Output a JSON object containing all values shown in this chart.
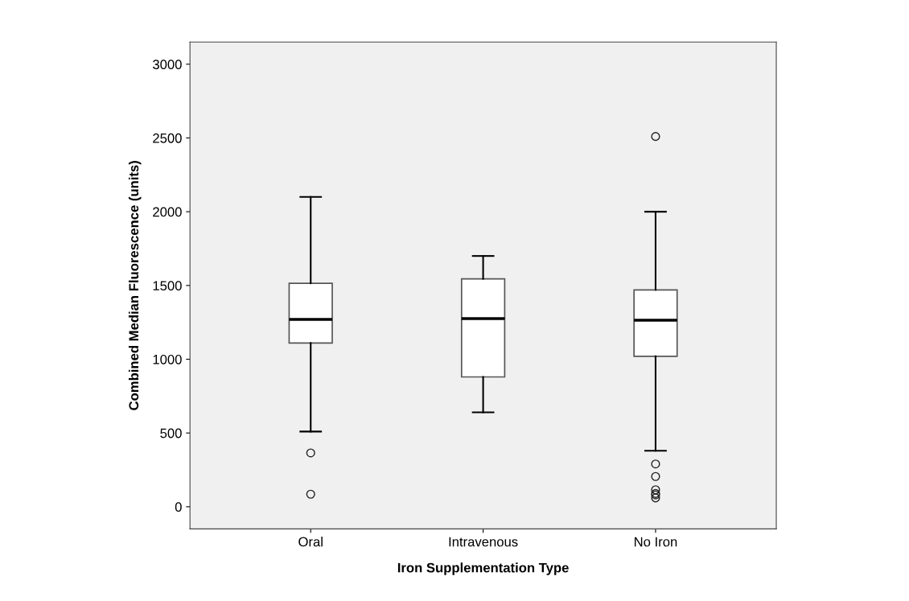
{
  "chart_data": {
    "type": "box",
    "xlabel": "Iron Supplementation Type",
    "ylabel": "Combined Median Fluorescence (units)",
    "categories": [
      "Oral",
      "Intravenous",
      "No Iron"
    ],
    "boxes": [
      {
        "low": 510,
        "q1": 1110,
        "median": 1270,
        "q3": 1515,
        "high": 2100,
        "outliers": [
          365,
          85
        ]
      },
      {
        "low": 640,
        "q1": 880,
        "median": 1275,
        "q3": 1545,
        "high": 1700
      },
      {
        "low": 380,
        "q1": 1020,
        "median": 1265,
        "q3": 1470,
        "high": 2000,
        "outliers": [
          2510,
          290,
          205,
          115,
          90,
          80,
          60
        ]
      }
    ],
    "ylim": [
      -150,
      3150
    ],
    "yticks": [
      0,
      500,
      1000,
      1500,
      2000,
      2500,
      3000
    ],
    "grid": false
  }
}
